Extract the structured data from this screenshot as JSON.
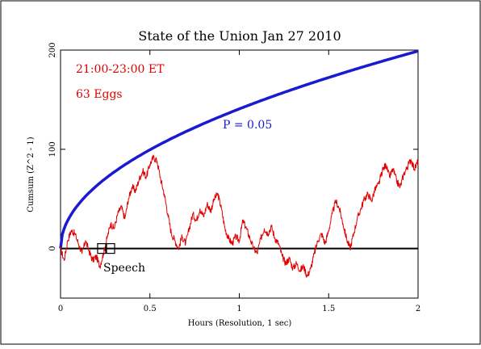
{
  "chart_data": {
    "type": "line",
    "title": "State of the Union Jan 27 2010",
    "xlabel": "Hours (Resolution, 1 sec)",
    "ylabel": "Cumsum (Z^2 - 1)",
    "xlim": [
      0,
      2
    ],
    "ylim": [
      -50,
      200
    ],
    "x_ticks": [
      0,
      0.5,
      1,
      1.5,
      2
    ],
    "x_tick_labels": [
      "0",
      "0.5",
      "1",
      "1.5",
      "2"
    ],
    "y_ticks": [
      0,
      100,
      200
    ],
    "y_tick_labels": [
      "0",
      "100",
      "200"
    ],
    "grid": false,
    "annotations": {
      "time_range": "21:00-23:00 ET",
      "eggs": "63 Eggs",
      "p_label": "P = 0.05",
      "event_label": "Speech",
      "event_start_hours": 0.23,
      "event_end_hours": 0.28
    },
    "colors": {
      "data_series": "#e00000",
      "probability_envelope": "#1a1ad0",
      "baseline": "#000000"
    },
    "series": [
      {
        "role": "cumulative deviation",
        "color": "#e00000",
        "points": [
          [
            0.0,
            0
          ],
          [
            0.02,
            -12
          ],
          [
            0.04,
            8
          ],
          [
            0.06,
            18
          ],
          [
            0.08,
            15
          ],
          [
            0.1,
            5
          ],
          [
            0.12,
            -5
          ],
          [
            0.14,
            8
          ],
          [
            0.16,
            -3
          ],
          [
            0.18,
            -12
          ],
          [
            0.2,
            -8
          ],
          [
            0.22,
            -18
          ],
          [
            0.24,
            -5
          ],
          [
            0.26,
            10
          ],
          [
            0.28,
            25
          ],
          [
            0.3,
            20
          ],
          [
            0.32,
            35
          ],
          [
            0.34,
            42
          ],
          [
            0.36,
            30
          ],
          [
            0.38,
            50
          ],
          [
            0.4,
            62
          ],
          [
            0.42,
            58
          ],
          [
            0.44,
            70
          ],
          [
            0.46,
            78
          ],
          [
            0.48,
            72
          ],
          [
            0.5,
            85
          ],
          [
            0.52,
            92
          ],
          [
            0.54,
            88
          ],
          [
            0.56,
            70
          ],
          [
            0.58,
            55
          ],
          [
            0.6,
            35
          ],
          [
            0.62,
            15
          ],
          [
            0.64,
            8
          ],
          [
            0.66,
            0
          ],
          [
            0.68,
            12
          ],
          [
            0.7,
            5
          ],
          [
            0.72,
            20
          ],
          [
            0.74,
            35
          ],
          [
            0.76,
            28
          ],
          [
            0.78,
            40
          ],
          [
            0.8,
            32
          ],
          [
            0.82,
            45
          ],
          [
            0.84,
            38
          ],
          [
            0.86,
            50
          ],
          [
            0.88,
            55
          ],
          [
            0.9,
            40
          ],
          [
            0.92,
            20
          ],
          [
            0.94,
            10
          ],
          [
            0.96,
            5
          ],
          [
            0.98,
            12
          ],
          [
            1.0,
            8
          ],
          [
            1.02,
            28
          ],
          [
            1.04,
            20
          ],
          [
            1.06,
            10
          ],
          [
            1.08,
            0
          ],
          [
            1.1,
            -5
          ],
          [
            1.12,
            10
          ],
          [
            1.14,
            20
          ],
          [
            1.16,
            15
          ],
          [
            1.18,
            22
          ],
          [
            1.2,
            10
          ],
          [
            1.22,
            5
          ],
          [
            1.24,
            -8
          ],
          [
            1.26,
            -15
          ],
          [
            1.28,
            -10
          ],
          [
            1.3,
            -20
          ],
          [
            1.32,
            -15
          ],
          [
            1.34,
            -22
          ],
          [
            1.36,
            -18
          ],
          [
            1.38,
            -28
          ],
          [
            1.4,
            -20
          ],
          [
            1.42,
            -5
          ],
          [
            1.44,
            8
          ],
          [
            1.46,
            15
          ],
          [
            1.48,
            5
          ],
          [
            1.5,
            18
          ],
          [
            1.52,
            35
          ],
          [
            1.54,
            48
          ],
          [
            1.56,
            40
          ],
          [
            1.58,
            25
          ],
          [
            1.6,
            10
          ],
          [
            1.62,
            0
          ],
          [
            1.64,
            15
          ],
          [
            1.66,
            30
          ],
          [
            1.68,
            40
          ],
          [
            1.7,
            50
          ],
          [
            1.72,
            55
          ],
          [
            1.74,
            48
          ],
          [
            1.76,
            60
          ],
          [
            1.78,
            65
          ],
          [
            1.8,
            78
          ],
          [
            1.82,
            85
          ],
          [
            1.84,
            72
          ],
          [
            1.86,
            80
          ],
          [
            1.88,
            68
          ],
          [
            1.9,
            62
          ],
          [
            1.92,
            75
          ],
          [
            1.94,
            82
          ],
          [
            1.96,
            90
          ],
          [
            1.98,
            80
          ],
          [
            2.0,
            88
          ]
        ]
      },
      {
        "role": "probability envelope",
        "color": "#1a1ad0",
        "formula": "k * sqrt(hours)",
        "points": [
          [
            0.0,
            0
          ],
          [
            0.01,
            14
          ],
          [
            0.02,
            20
          ],
          [
            0.05,
            31
          ],
          [
            0.1,
            44
          ],
          [
            0.2,
            63
          ],
          [
            0.3,
            77
          ],
          [
            0.4,
            89
          ],
          [
            0.5,
            99
          ],
          [
            0.75,
            122
          ],
          [
            1.0,
            140
          ],
          [
            1.25,
            157
          ],
          [
            1.5,
            172
          ],
          [
            1.75,
            186
          ],
          [
            2.0,
            199
          ]
        ]
      },
      {
        "role": "baseline",
        "color": "#000000",
        "points": [
          [
            0,
            0
          ],
          [
            2,
            0
          ]
        ]
      }
    ]
  }
}
